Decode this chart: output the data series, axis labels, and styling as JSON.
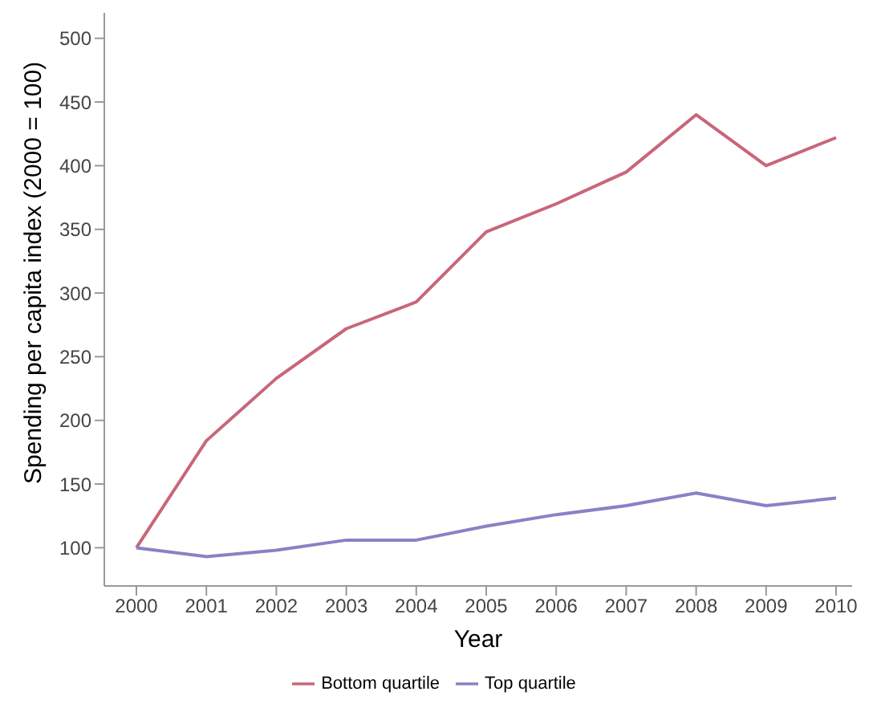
{
  "chart_data": {
    "type": "line",
    "xlabel": "Year",
    "ylabel": "Spending per capita index (2000 = 100)",
    "categories": [
      "2000",
      "2001",
      "2002",
      "2003",
      "2004",
      "2005",
      "2006",
      "2007",
      "2008",
      "2009",
      "2010"
    ],
    "series": [
      {
        "name": "Bottom quartile",
        "color": "#c9667a",
        "values": [
          100,
          184,
          233,
          272,
          293,
          348,
          370,
          395,
          440,
          400,
          422
        ]
      },
      {
        "name": "Top quartile",
        "color": "#8783c5",
        "values": [
          100,
          93,
          98,
          106,
          106,
          117,
          126,
          133,
          143,
          133,
          139
        ]
      }
    ],
    "ylim": [
      70,
      520
    ],
    "yticks": [
      100,
      150,
      200,
      250,
      300,
      350,
      400,
      450,
      500
    ],
    "grid": false,
    "legend": "bottom",
    "marker": "none",
    "line_style": "solid"
  }
}
